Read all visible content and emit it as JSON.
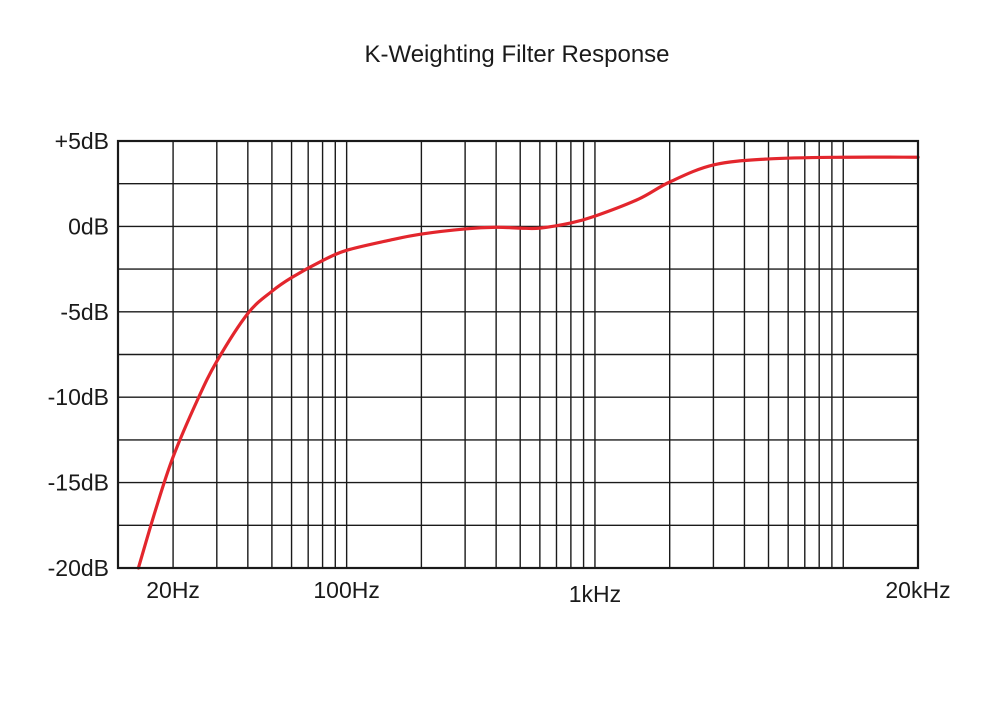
{
  "chart_data": {
    "type": "line",
    "title": "K-Weighting Filter Response",
    "xlabel": "",
    "ylabel": "",
    "x_scale": "log",
    "xlim": [
      12,
      20000
    ],
    "ylim": [
      -20,
      5
    ],
    "grid": true,
    "x_ticks": [
      {
        "value": 20,
        "label": "20Hz"
      },
      {
        "value": 100,
        "label": "100Hz"
      },
      {
        "value": 1000,
        "label": "1kHz"
      },
      {
        "value": 20000,
        "label": "20kHz"
      }
    ],
    "y_ticks": [
      {
        "value": 5,
        "label": "+5dB"
      },
      {
        "value": 0,
        "label": "0dB"
      },
      {
        "value": -5,
        "label": "-5dB"
      },
      {
        "value": -10,
        "label": "-10dB"
      },
      {
        "value": -15,
        "label": "-15dB"
      },
      {
        "value": -20,
        "label": "-20dB"
      }
    ],
    "series": [
      {
        "color": "#e3262d",
        "x": [
          14.5,
          17,
          20,
          25,
          30,
          40,
          50,
          60,
          80,
          100,
          150,
          200,
          300,
          400,
          500,
          600,
          800,
          1000,
          1500,
          2000,
          3000,
          5000,
          10000,
          20000
        ],
        "y": [
          -20,
          -16.6,
          -13.5,
          -10.2,
          -7.9,
          -5.1,
          -3.8,
          -3.0,
          -2.0,
          -1.4,
          -0.8,
          -0.45,
          -0.15,
          -0.05,
          -0.1,
          -0.1,
          0.2,
          0.6,
          1.6,
          2.6,
          3.6,
          3.95,
          4.05,
          4.05
        ]
      }
    ]
  }
}
